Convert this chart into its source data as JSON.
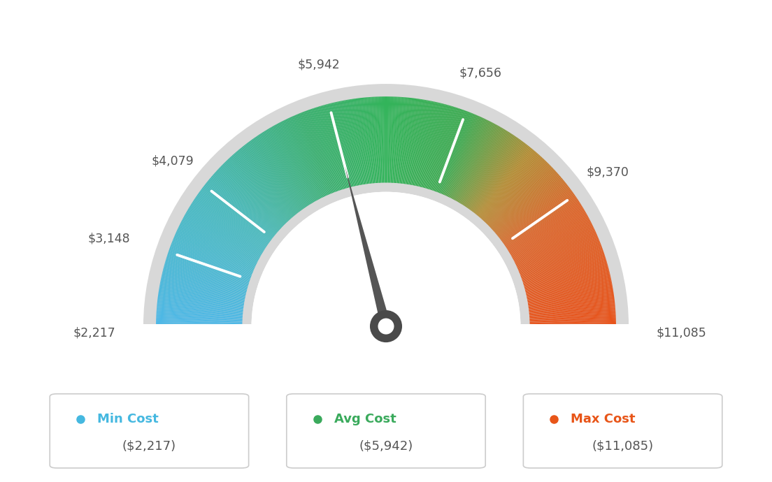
{
  "min_val": 2217,
  "max_val": 11085,
  "avg_val": 5942,
  "labels": [
    "$2,217",
    "$3,148",
    "$4,079",
    "$5,942",
    "$7,656",
    "$9,370",
    "$11,085"
  ],
  "label_values": [
    2217,
    3148,
    4079,
    5942,
    7656,
    9370,
    11085
  ],
  "min_cost_label": "Min Cost",
  "avg_cost_label": "Avg Cost",
  "max_cost_label": "Max Cost",
  "min_cost_value": "($2,217)",
  "avg_cost_value": "($5,942)",
  "max_cost_value": "($11,085)",
  "min_color": "#45b8e0",
  "avg_color": "#3aaa5c",
  "max_color": "#e85518",
  "needle_color": "#555555",
  "bg_color": "#ffffff",
  "label_color": "#555555",
  "color_stops": [
    [
      0.0,
      [
        77,
        184,
        232
      ]
    ],
    [
      0.2,
      [
        70,
        185,
        190
      ]
    ],
    [
      0.38,
      [
        55,
        175,
        110
      ]
    ],
    [
      0.5,
      [
        50,
        180,
        90
      ]
    ],
    [
      0.62,
      [
        60,
        170,
        80
      ]
    ],
    [
      0.72,
      [
        180,
        140,
        50
      ]
    ],
    [
      0.82,
      [
        220,
        100,
        40
      ]
    ],
    [
      1.0,
      [
        232,
        82,
        26
      ]
    ]
  ]
}
